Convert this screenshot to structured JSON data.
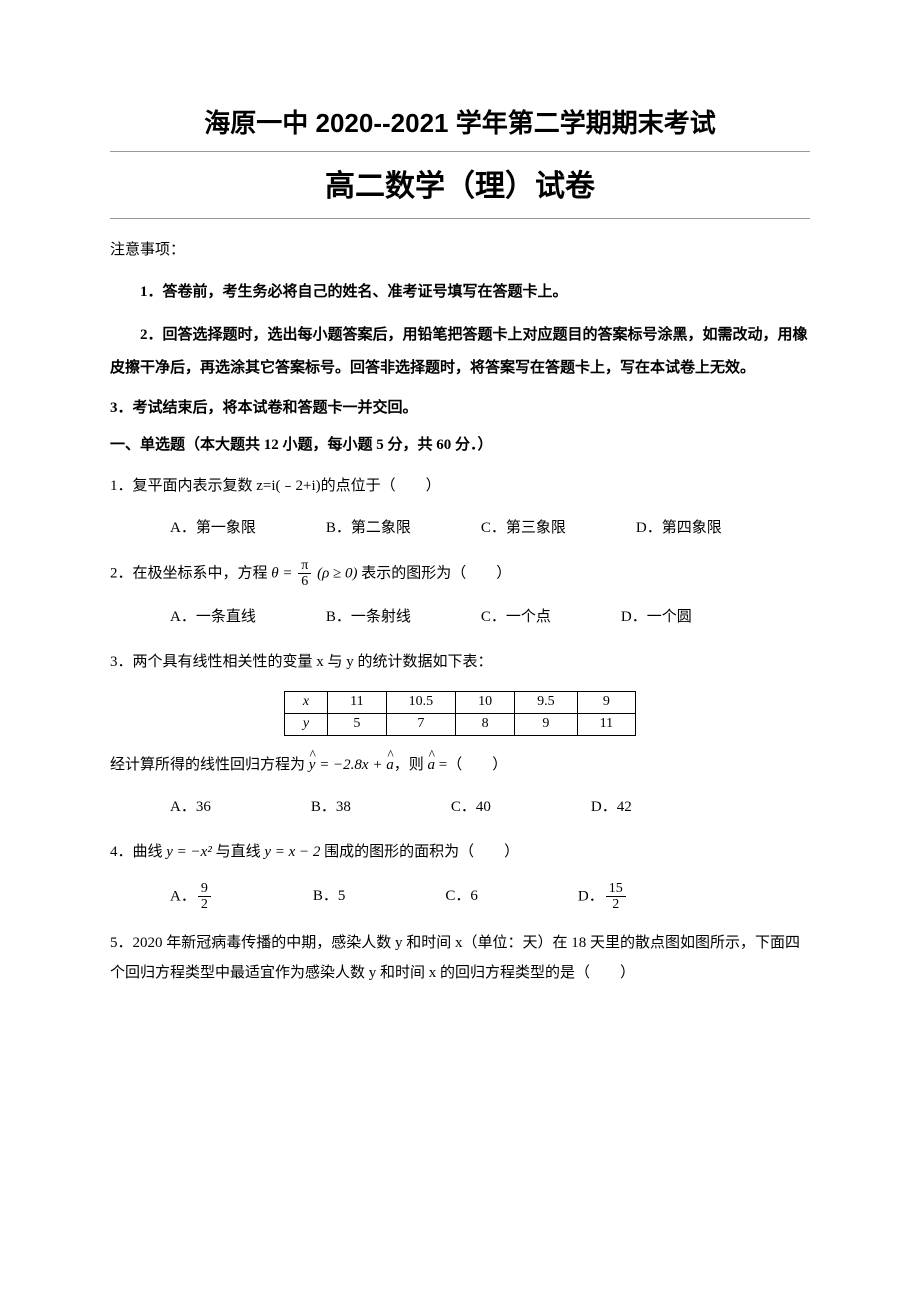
{
  "header": {
    "main_title": "海原一中 2020--2021 学年第二学期期末考试",
    "sub_title": "高二数学（理）试卷"
  },
  "notice_label": "注意事项：",
  "instructions": [
    "1．答卷前，考生务必将自己的姓名、准考证号填写在答题卡上。",
    "2．回答选择题时，选出每小题答案后，用铅笔把答题卡上对应题目的答案标号涂黑，如需改动，用橡皮擦干净后，再选涂其它答案标号。回答非选择题时，将答案写在答题卡上，写在本试卷上无效。"
  ],
  "instruction3": "3．考试结束后，将本试卷和答题卡一并交回。",
  "section1_header": "一、单选题（本大题共 12 小题，每小题 5 分，共 60 分．）",
  "q1": {
    "text": "1．复平面内表示复数 z=i(﹣2+i)的点位于（　　）",
    "options": [
      "A．第一象限",
      "B．第二象限",
      "C．第三象限",
      "D．第四象限"
    ]
  },
  "q2": {
    "prefix": "2．在极坐标系中，方程 ",
    "suffix": " 表示的图形为（　　）",
    "options": [
      "A．一条直线",
      "B．一条射线",
      "C．一个点",
      "D．一个圆"
    ]
  },
  "q3": {
    "text": "3．两个具有线性相关性的变量 x 与 y 的统计数据如下表：",
    "table": {
      "row1": [
        "x",
        "11",
        "10.5",
        "10",
        "9.5",
        "9"
      ],
      "row2": [
        "y",
        "5",
        "7",
        "8",
        "9",
        "11"
      ]
    },
    "calc_prefix": "经计算所得的线性回归方程为 ",
    "calc_mid": "，则 ",
    "calc_suffix": " =（　　）",
    "options": [
      "A．36",
      "B．38",
      "C．40",
      "D．42"
    ]
  },
  "q4": {
    "prefix": "4．曲线 ",
    "mid": " 与直线 ",
    "suffix": " 围成的图形的面积为（　　）",
    "optA": "A．",
    "optA_num": "9",
    "optA_den": "2",
    "optB": "B．5",
    "optC": "C．6",
    "optD": "D．",
    "optD_num": "15",
    "optD_den": "2"
  },
  "q5": {
    "text": "5．2020 年新冠病毒传播的中期，感染人数 y 和时间 x（单位：天）在 18 天里的散点图如图所示，下面四个回归方程类型中最适宜作为感染人数 y 和时间 x 的回归方程类型的是（　　）"
  },
  "colors": {
    "text": "#000000",
    "background": "#ffffff",
    "rule": "#999999"
  },
  "typography": {
    "title_fontsize": 26,
    "subtitle_fontsize": 30,
    "body_fontsize": 15,
    "line_height": 1.8
  }
}
